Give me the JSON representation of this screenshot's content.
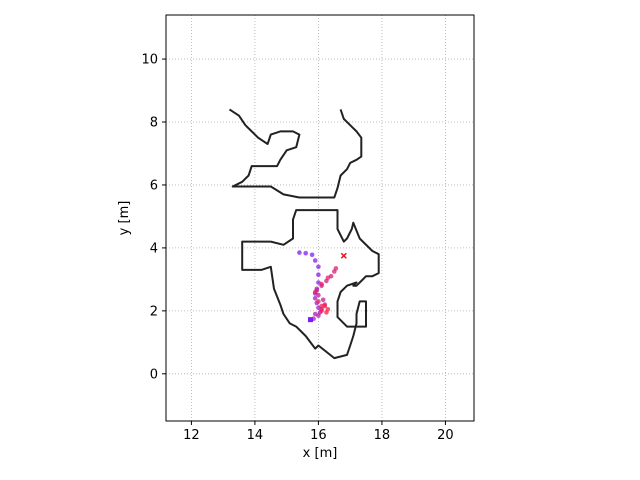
{
  "chart_data": {
    "type": "scatter",
    "xlabel": "x [m]",
    "ylabel": "y [m]",
    "xlim": [
      11.2,
      20.9
    ],
    "ylim": [
      -1.5,
      11.4
    ],
    "xticks": [
      12,
      14,
      16,
      18,
      20
    ],
    "yticks": [
      0,
      2,
      4,
      6,
      8,
      10
    ],
    "grid": true,
    "grid_style": "dotted",
    "colors": {
      "map": "#222222",
      "path_start": "#7a1cff",
      "path_end": "#ff1f3d",
      "goal": "#e8121e"
    },
    "map_outline": [
      [
        [
          13.2,
          8.4
        ],
        [
          13.5,
          8.2
        ],
        [
          13.7,
          7.9
        ],
        [
          13.9,
          7.7
        ],
        [
          14.1,
          7.5
        ],
        [
          14.4,
          7.3
        ],
        [
          14.5,
          7.6
        ],
        [
          14.8,
          7.7
        ],
        [
          15.2,
          7.7
        ],
        [
          15.4,
          7.6
        ],
        [
          15.3,
          7.2
        ],
        [
          15.0,
          7.1
        ],
        [
          14.8,
          6.8
        ],
        [
          14.7,
          6.6
        ],
        [
          13.9,
          6.6
        ],
        [
          13.8,
          6.3
        ],
        [
          13.6,
          6.1
        ],
        [
          13.3,
          5.95
        ],
        [
          14.0,
          5.95
        ],
        [
          14.5,
          5.95
        ],
        [
          14.9,
          5.7
        ],
        [
          15.4,
          5.6
        ],
        [
          16.0,
          5.6
        ],
        [
          16.5,
          5.6
        ],
        [
          16.6,
          5.9
        ],
        [
          16.7,
          6.3
        ],
        [
          16.9,
          6.5
        ],
        [
          17.0,
          6.7
        ],
        [
          17.2,
          6.8
        ],
        [
          17.35,
          6.9
        ],
        [
          17.35,
          7.5
        ],
        [
          17.2,
          7.7
        ],
        [
          17.0,
          7.9
        ],
        [
          16.8,
          8.1
        ],
        [
          16.7,
          8.4
        ]
      ],
      [
        [
          14.5,
          4.2
        ],
        [
          14.9,
          4.1
        ],
        [
          15.2,
          4.3
        ],
        [
          15.2,
          4.9
        ],
        [
          15.3,
          5.2
        ],
        [
          15.9,
          5.2
        ],
        [
          16.6,
          5.2
        ],
        [
          16.6,
          4.6
        ],
        [
          16.8,
          4.2
        ],
        [
          16.9,
          4.3
        ],
        [
          17.05,
          4.6
        ],
        [
          17.1,
          4.8
        ],
        [
          17.3,
          4.3
        ],
        [
          17.7,
          3.9
        ],
        [
          17.9,
          3.8
        ],
        [
          17.9,
          3.5
        ],
        [
          17.9,
          3.2
        ],
        [
          17.7,
          3.1
        ],
        [
          17.5,
          3.1
        ],
        [
          17.4,
          3.0
        ],
        [
          17.2,
          2.8
        ],
        [
          17.1,
          2.8
        ],
        [
          17.2,
          2.9
        ],
        [
          16.9,
          2.8
        ],
        [
          16.7,
          2.6
        ],
        [
          16.6,
          2.3
        ],
        [
          16.6,
          1.8
        ],
        [
          16.9,
          1.5
        ],
        [
          17.3,
          1.5
        ],
        [
          17.5,
          1.5
        ],
        [
          17.5,
          2.0
        ],
        [
          17.5,
          2.3
        ],
        [
          17.3,
          2.3
        ],
        [
          17.2,
          1.9
        ],
        [
          17.2,
          1.6
        ],
        [
          17.1,
          1.2
        ],
        [
          17.0,
          0.9
        ],
        [
          16.9,
          0.6
        ],
        [
          16.5,
          0.5
        ],
        [
          16.0,
          0.9
        ],
        [
          15.9,
          0.8
        ],
        [
          15.6,
          1.2
        ],
        [
          15.3,
          1.5
        ],
        [
          15.1,
          1.6
        ],
        [
          14.9,
          1.9
        ],
        [
          14.8,
          2.2
        ],
        [
          14.6,
          2.7
        ],
        [
          14.5,
          3.4
        ],
        [
          14.2,
          3.3
        ],
        [
          13.8,
          3.3
        ],
        [
          13.6,
          3.3
        ],
        [
          13.6,
          4.2
        ],
        [
          14.0,
          4.2
        ],
        [
          14.5,
          4.2
        ]
      ]
    ],
    "path_points": [
      [
        15.4,
        3.85
      ],
      [
        15.6,
        3.83
      ],
      [
        15.8,
        3.78
      ],
      [
        15.9,
        3.6
      ],
      [
        16.0,
        3.4
      ],
      [
        16.0,
        3.15
      ],
      [
        16.0,
        2.9
      ],
      [
        15.95,
        2.7
      ],
      [
        15.9,
        2.55
      ],
      [
        15.9,
        2.4
      ],
      [
        15.95,
        2.25
      ],
      [
        16.0,
        2.1
      ],
      [
        16.05,
        1.95
      ],
      [
        16.0,
        1.85
      ],
      [
        15.85,
        1.75
      ],
      [
        15.75,
        1.72
      ],
      [
        15.9,
        1.9
      ],
      [
        16.1,
        2.05
      ],
      [
        16.2,
        2.2
      ],
      [
        16.15,
        2.35
      ],
      [
        16.0,
        2.5
      ],
      [
        15.95,
        2.65
      ],
      [
        16.1,
        2.8
      ],
      [
        16.25,
        2.95
      ],
      [
        16.4,
        3.1
      ],
      [
        16.5,
        3.25
      ],
      [
        16.55,
        3.35
      ],
      [
        16.3,
        3.05
      ],
      [
        16.1,
        2.85
      ],
      [
        15.9,
        2.6
      ],
      [
        16.0,
        2.3
      ],
      [
        16.1,
        2.15
      ],
      [
        16.3,
        2.05
      ],
      [
        16.25,
        1.95
      ],
      [
        16.1,
        2.0
      ],
      [
        16.2,
        2.15
      ]
    ],
    "goal": [
      16.8,
      3.75
    ]
  }
}
